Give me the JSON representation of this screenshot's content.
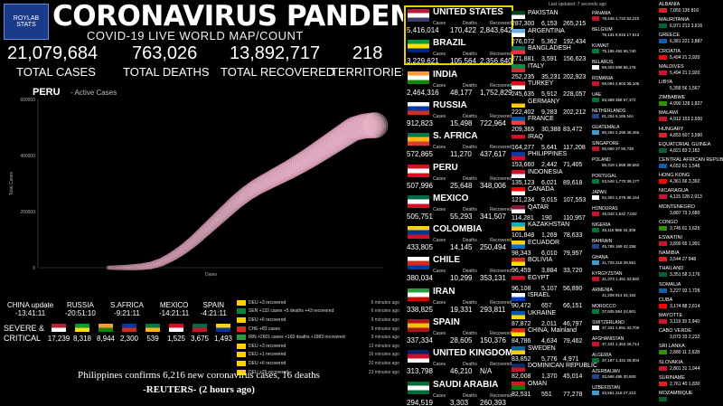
{
  "header": {
    "logo_text": "ROYLAB STATS",
    "title": "CORONAVIRUS PANDEMIC",
    "subtitle": "COVID-19 LIVE WORLD MAP/COUNT"
  },
  "stats": [
    {
      "value": "21,079,684",
      "label": "TOTAL CASES"
    },
    {
      "value": "763,026",
      "label": "TOTAL DEATHS"
    },
    {
      "value": "13,892,717",
      "label": "TOTAL RECOVERED"
    },
    {
      "value": "218",
      "label": "TERRITORIES"
    }
  ],
  "chart_data": {
    "type": "scatter",
    "title": "PERU",
    "subtitle": "- Active Cases",
    "xlabel": "Dates",
    "ylabel": "Total Cases",
    "ylim": [
      0,
      600000
    ],
    "yticks": [
      "0",
      "200000",
      "400000",
      "600000"
    ],
    "x": [
      0,
      4,
      8,
      12,
      16,
      20,
      24,
      28,
      32,
      36,
      40,
      44,
      48,
      52,
      56,
      60,
      64,
      68,
      72,
      76,
      80,
      84,
      88,
      92,
      96,
      100
    ],
    "y": [
      0,
      0,
      1000,
      3000,
      8000,
      20000,
      40000,
      65000,
      95000,
      130000,
      165000,
      200000,
      235000,
      265000,
      290000,
      310000,
      330000,
      350000,
      372000,
      395000,
      420000,
      445000,
      470000,
      495000,
      505000,
      508000
    ],
    "grid": false,
    "color": "#e8b4c8"
  },
  "updates": [
    {
      "city": "CHINA update",
      "time": "-13:41:11"
    },
    {
      "city": "RUSSIA",
      "time": "-20:51:10"
    },
    {
      "city": "S.AFRICA",
      "time": "-9:21:11"
    },
    {
      "city": "MEXICO",
      "time": "-14:21:11"
    },
    {
      "city": "SPAIN",
      "time": "-4:21:11"
    }
  ],
  "severe": {
    "label_1": "SEVERE &",
    "label_2": "CRITICAL",
    "items": [
      {
        "value": "17,239",
        "colors": [
          "#b22234",
          "#fff"
        ]
      },
      {
        "value": "8,318",
        "colors": [
          "#009c3b",
          "#ffdf00"
        ]
      },
      {
        "value": "8,944",
        "colors": [
          "#ff9933",
          "#138808"
        ]
      },
      {
        "value": "2,300",
        "colors": [
          "#0039a6",
          "#d52b1e"
        ]
      },
      {
        "value": "539",
        "colors": [
          "#007a4d",
          "#ffb612"
        ]
      },
      {
        "value": "1,525",
        "colors": [
          "#d91023",
          "#fff"
        ]
      },
      {
        "value": "3,675",
        "colors": [
          "#006847",
          "#ce1126"
        ]
      },
      {
        "value": "1,493",
        "colors": [
          "#fcd116",
          "#003893"
        ]
      }
    ]
  },
  "news": [
    {
      "text": "DEU +3 recovered",
      "time": "6 minutes ago",
      "color": "#ffce00"
    },
    {
      "text": "SEN +132 cases +5 deaths +43 recovered",
      "time": "6 minutes ago",
      "color": "#00853f"
    },
    {
      "text": "DEU +6 recovered",
      "time": "9 minutes ago",
      "color": "#ffce00"
    },
    {
      "text": "CHE +83 cases",
      "time": "9 minutes ago",
      "color": "#d52b1e"
    },
    {
      "text": "IRN +2601 cases +169 deaths +1983 recovered",
      "time": "9 minutes ago",
      "color": "#239f40"
    },
    {
      "text": "DEU +3 recovered",
      "time": "13 minutes ago",
      "color": "#ffce00"
    },
    {
      "text": "DEU +1 recovered",
      "time": "16 minutes ago",
      "color": "#ffce00"
    },
    {
      "text": "DEU +6 recovered",
      "time": "20 minutes ago",
      "color": "#ffce00"
    },
    {
      "text": "DEU +29 recovered",
      "time": "23 minutes ago",
      "color": "#ffce00"
    }
  ],
  "headline": "Philippines confirms 6,216 new coronavirus cases, 16 deaths",
  "source": "-REUTERS- (2 hours ago)",
  "big_countries": [
    {
      "name": "UNITED STATES",
      "cases": "5,416,014",
      "deaths": "170,422",
      "recovered": "2,843,642",
      "colors": [
        "#b22234",
        "#fff",
        "#3c3b6e"
      ]
    },
    {
      "name": "BRAZIL",
      "cases": "3,229,621",
      "deaths": "105,564",
      "recovered": "2,356,640",
      "colors": [
        "#009c3b",
        "#ffdf00",
        "#002776"
      ]
    },
    {
      "name": "INDIA",
      "cases": "2,464,316",
      "deaths": "48,177",
      "recovered": "1,752,829",
      "colors": [
        "#ff9933",
        "#fff",
        "#138808"
      ]
    },
    {
      "name": "RUSSIA",
      "cases": "912,823",
      "deaths": "15,498",
      "recovered": "722,964",
      "colors": [
        "#fff",
        "#0039a6",
        "#d52b1e"
      ]
    },
    {
      "name": "S. AFRICA",
      "cases": "572,865",
      "deaths": "11,270",
      "recovered": "437,617",
      "colors": [
        "#007a4d",
        "#ffb612",
        "#de3831"
      ]
    },
    {
      "name": "PERU",
      "cases": "507,996",
      "deaths": "25,648",
      "recovered": "348,006",
      "colors": [
        "#d91023",
        "#fff",
        "#d91023"
      ]
    },
    {
      "name": "MEXICO",
      "cases": "505,751",
      "deaths": "55,293",
      "recovered": "341,507",
      "colors": [
        "#006847",
        "#fff",
        "#ce1126"
      ]
    },
    {
      "name": "COLOMBIA",
      "cases": "433,805",
      "deaths": "14,145",
      "recovered": "250,494",
      "colors": [
        "#fcd116",
        "#003893",
        "#ce1126"
      ]
    },
    {
      "name": "CHILE",
      "cases": "380,034",
      "deaths": "10,299",
      "recovered": "353,131",
      "colors": [
        "#fff",
        "#d52b1e",
        "#0039a6"
      ]
    },
    {
      "name": "IRAN",
      "cases": "338,825",
      "deaths": "19,331",
      "recovered": "293,811",
      "colors": [
        "#239f40",
        "#fff",
        "#da0000"
      ]
    },
    {
      "name": "SPAIN",
      "cases": "337,334",
      "deaths": "28,605",
      "recovered": "150,376",
      "colors": [
        "#aa151b",
        "#f1bf00",
        "#aa151b"
      ]
    },
    {
      "name": "UNITED KINGDOM",
      "cases": "313,798",
      "deaths": "46,210",
      "recovered": "N/A",
      "colors": [
        "#012169",
        "#c8102e",
        "#fff"
      ]
    },
    {
      "name": "SAUDI ARABIA",
      "cases": "294,519",
      "deaths": "3,303",
      "recovered": "260,393",
      "colors": [
        "#006c35",
        "#fff",
        "#006c35"
      ]
    }
  ],
  "big_labels": {
    "cases": "Cases",
    "deaths": "Deaths",
    "recovered": "Recovered"
  },
  "mid_countries": [
    {
      "name": "PAKISTAN",
      "cases": "287,300",
      "deaths": "6,153",
      "recovered": "265,215",
      "colors": [
        "#01411c",
        "#fff"
      ]
    },
    {
      "name": "ARGENTINA",
      "cases": "276,072",
      "deaths": "5,362",
      "recovered": "192,434",
      "colors": [
        "#74acdf",
        "#fff"
      ]
    },
    {
      "name": "BANGLADESH",
      "cases": "271,881",
      "deaths": "3,591",
      "recovered": "156,623",
      "colors": [
        "#006a4e",
        "#f42a41"
      ]
    },
    {
      "name": "ITALY",
      "cases": "252,235",
      "deaths": "35,231",
      "recovered": "202,923",
      "colors": [
        "#009246",
        "#ce2b37"
      ]
    },
    {
      "name": "TURKEY",
      "cases": "245,635",
      "deaths": "5,912",
      "recovered": "228,057",
      "colors": [
        "#e30a17",
        "#fff"
      ]
    },
    {
      "name": "GERMANY",
      "cases": "222,402",
      "deaths": "9,283",
      "recovered": "202,212",
      "colors": [
        "#000",
        "#ffce00"
      ]
    },
    {
      "name": "FRANCE",
      "cases": "209,365",
      "deaths": "30,388",
      "recovered": "83,472",
      "colors": [
        "#0055a4",
        "#ef4135"
      ]
    },
    {
      "name": "IRAQ",
      "cases": "164,277",
      "deaths": "5,641",
      "recovered": "117,208",
      "colors": [
        "#ce1126",
        "#000"
      ]
    },
    {
      "name": "PHILIPPINES",
      "cases": "153,660",
      "deaths": "2,442",
      "recovered": "71,405",
      "colors": [
        "#0038a8",
        "#ce1126"
      ]
    },
    {
      "name": "INDONESIA",
      "cases": "135,123",
      "deaths": "6,021",
      "recovered": "89,618",
      "colors": [
        "#ce1126",
        "#fff"
      ]
    },
    {
      "name": "CANADA",
      "cases": "121,234",
      "deaths": "9,015",
      "recovered": "107,553",
      "colors": [
        "#ff0000",
        "#fff"
      ]
    },
    {
      "name": "QATAR",
      "cases": "114,281",
      "deaths": "190",
      "recovered": "110,957",
      "colors": [
        "#8a1538",
        "#fff"
      ]
    },
    {
      "name": "KAZAKHSTAN",
      "cases": "101,848",
      "deaths": "1,269",
      "recovered": "78,633",
      "colors": [
        "#00afca",
        "#fec50c"
      ]
    },
    {
      "name": "ECUADOR",
      "cases": "98,343",
      "deaths": "6,010",
      "recovered": "79,957",
      "colors": [
        "#ffd100",
        "#0072ce"
      ]
    },
    {
      "name": "BOLIVIA",
      "cases": "96,459",
      "deaths": "3,884",
      "recovered": "33,720",
      "colors": [
        "#d52b1e",
        "#f9e300"
      ]
    },
    {
      "name": "EGYPT",
      "cases": "96,108",
      "deaths": "5,107",
      "recovered": "56,890",
      "colors": [
        "#ce1126",
        "#000"
      ]
    },
    {
      "name": "ISRAEL",
      "cases": "90,472",
      "deaths": "657",
      "recovered": "66,151",
      "colors": [
        "#fff",
        "#0038b8"
      ]
    },
    {
      "name": "UKRAINE",
      "cases": "87,872",
      "deaths": "2,011",
      "recovered": "46,797",
      "colors": [
        "#0057b7",
        "#ffd700"
      ]
    },
    {
      "name": "CHINA, Mainland",
      "cases": "84,786",
      "deaths": "4,634",
      "recovered": "79,462",
      "colors": [
        "#de2910",
        "#ffde00"
      ]
    },
    {
      "name": "SWEDEN",
      "cases": "83,852",
      "deaths": "5,776",
      "recovered": "4,971",
      "colors": [
        "#006aa7",
        "#fecc00"
      ]
    },
    {
      "name": "DOMINICAN REPUBLIC",
      "cases": "82,008",
      "deaths": "1,370",
      "recovered": "45,014",
      "colors": [
        "#002d62",
        "#ce1126"
      ]
    },
    {
      "name": "OMAN",
      "cases": "82,531",
      "deaths": "551",
      "recovered": "77,278",
      "colors": [
        "#db161b",
        "#008000"
      ]
    }
  ],
  "small_countries": [
    {
      "name": "PANAMA",
      "vals": "78,446  1,722  52,210"
    },
    {
      "name": "BELGIUM",
      "vals": "78,131  9,916  17,913"
    },
    {
      "name": "KUWAIT",
      "vals": "75,185    492  66,740"
    },
    {
      "name": "BELARUS",
      "vals": "69,403    598  66,178"
    },
    {
      "name": "ROMANIA",
      "vals": "69,094  2,904  35,105"
    },
    {
      "name": "UAE",
      "vals": "63,489    358  57,372"
    },
    {
      "name": "NETHERLANDS",
      "vals": "61,204  6,165    N/A"
    },
    {
      "name": "GUATEMALA",
      "vals": "60,284  2,296  48,455"
    },
    {
      "name": "SINGAPORE",
      "vals": "55,580     27  50,736"
    },
    {
      "name": "POLAND",
      "vals": "55,319  1,858  38,562"
    },
    {
      "name": "PORTUGAL",
      "vals": "53,548  1,770  39,177"
    },
    {
      "name": "JAPAN",
      "vals": "52,304  1,076  36,154"
    },
    {
      "name": "HONDURAS",
      "vals": "48,042  1,542  7,032"
    },
    {
      "name": "NIGERIA",
      "vals": "48,116    966  34,309"
    },
    {
      "name": "BAHRAIN",
      "vals": "45,785    169  42,258"
    },
    {
      "name": "GHANA",
      "vals": "41,725    218  38,551"
    },
    {
      "name": "KYRGYZSTAN",
      "vals": "41,373  1,491  33,592"
    },
    {
      "name": "ARMENIA",
      "vals": "41,208    814  34,164"
    },
    {
      "name": "MOROCCO",
      "vals": "37,935    584  24,901"
    },
    {
      "name": "SWITZERLAND",
      "vals": "37,321  1,991  32,700"
    },
    {
      "name": "AFGHANISTAN",
      "vals": "37,431  1,363  26,714"
    },
    {
      "name": "ALGERIA",
      "vals": "37,187  1,341  26,004"
    },
    {
      "name": "AZERBAIJAN",
      "vals": "33,568    496  30,500"
    },
    {
      "name": "UZBEKISTAN",
      "vals": "33,561    218  27,213"
    }
  ],
  "xs_countries": [
    {
      "name": "ALBANIA",
      "vals": "7,050  135  816"
    },
    {
      "name": "MAURITANIA",
      "vals": "6,971  213  3,616"
    },
    {
      "name": "GREECE",
      "vals": "6,381  221  3,887"
    },
    {
      "name": "CROATIA",
      "vals": "5,494   21  2,920"
    },
    {
      "name": "MALDIVES",
      "vals": "5,494   21  2,920"
    },
    {
      "name": "LIBYA",
      "vals": "5,358   56  1,567"
    },
    {
      "name": "ZIMBABWE",
      "vals": "4,990  128  1,827"
    },
    {
      "name": "MALAWI",
      "vals": "4,912  153  2,650"
    },
    {
      "name": "HUNGARY",
      "vals": "4,853  607  3,590"
    },
    {
      "name": "EQUATORIAL GUINEA",
      "vals": "4,821   83  2,182"
    },
    {
      "name": "CENTRAL AFRICAN REPUBLIC",
      "vals": "4,652   61  1,546"
    },
    {
      "name": "HONG KONG",
      "vals": "4,361   66  3,392"
    },
    {
      "name": "NICARAGUA",
      "vals": "4,115  128  2,913"
    },
    {
      "name": "MONTENEGRO",
      "vals": "3,887   73  2,680"
    },
    {
      "name": "CONGO",
      "vals": "3,745   61  1,625"
    },
    {
      "name": "ESWATINI",
      "vals": "3,890   65  1,991"
    },
    {
      "name": "NAMIBIA",
      "vals": "3,544   27    848"
    },
    {
      "name": "THAILAND",
      "vals": "3,351   58  3,176"
    },
    {
      "name": "SOMALIA",
      "vals": "3,227   93  1,728"
    },
    {
      "name": "CUBA",
      "vals": "3,174   88  2,614"
    },
    {
      "name": "MAYOTTE",
      "vals": "3,119   39  2,940"
    },
    {
      "name": "CABO VERDE",
      "vals": "3,073   33  2,232"
    },
    {
      "name": "SRI LANKA",
      "vals": "2,880   11  2,628"
    },
    {
      "name": "SLOVAKIA",
      "vals": "2,801   31  1,944"
    },
    {
      "name": "SURINAME",
      "vals": "2,761   40  1,830"
    },
    {
      "name": "MOZAMBIQUE",
      "vals": ""
    }
  ],
  "last_updated": "Last updated: 7 seconds ago"
}
